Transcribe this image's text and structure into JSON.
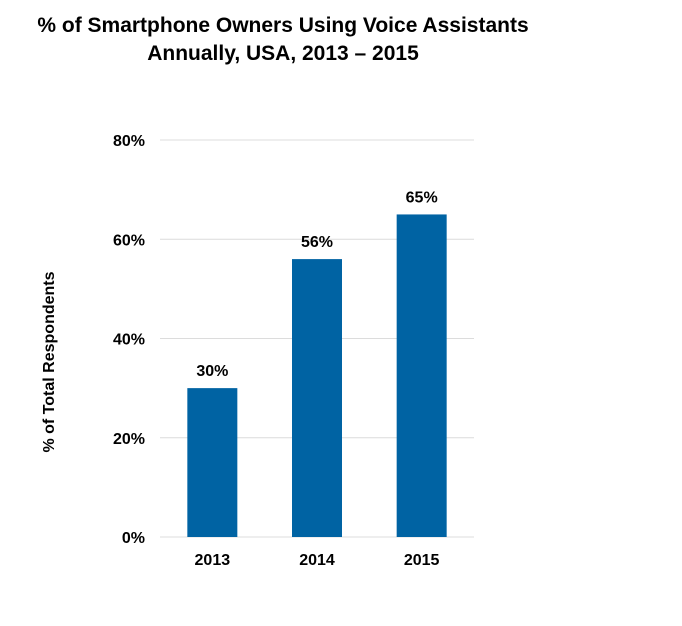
{
  "chart_data": {
    "type": "bar",
    "title": "% of Smartphone Owners Using Voice Assistants",
    "subtitle": "Annually, USA, 2013 – 2015",
    "xlabel": "",
    "ylabel": "% of Total Respondents",
    "categories": [
      "2013",
      "2014",
      "2015"
    ],
    "values": [
      30,
      56,
      65
    ],
    "value_labels": [
      "30%",
      "56%",
      "65%"
    ],
    "ylim": [
      0,
      80
    ],
    "y_ticks": [
      0,
      20,
      40,
      60,
      80
    ],
    "y_tick_labels": [
      "0%",
      "20%",
      "40%",
      "60%",
      "80%"
    ],
    "grid": true,
    "bar_color": "#0063A3",
    "grid_color": "#DCDCDC"
  }
}
